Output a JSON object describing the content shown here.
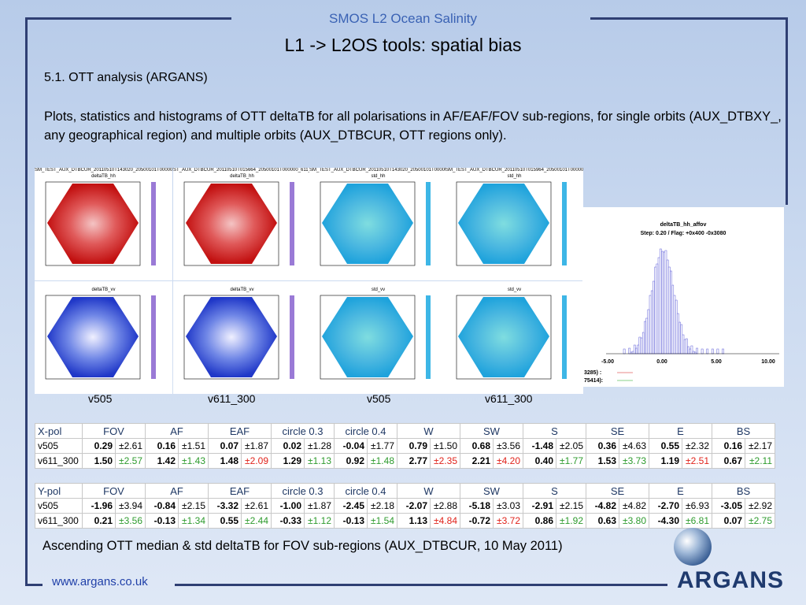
{
  "header": {
    "supertitle": "SMOS L2 Ocean Salinity",
    "title": "L1 -> L2OS tools: spatial bias"
  },
  "section_label": "5.1. OTT analysis (ARGANS)",
  "description": "Plots, statistics and histograms of OTT deltaTB for all polarisations in AF/EAF/FOV sub-regions, for single orbits (AUX_DTBXY_, any geographical region) and multiple orbits (AUX_DTBCUR, OTT regions only).",
  "plots": [
    {
      "title": "SM_TEST_AUX_DTBCUR_20110510T143020_20500101T000000_611_001_8OTT1",
      "sub": "deltaTB_hh"
    },
    {
      "title": "ST_AUX_DTBCUR_20110510T015664_20500101T000000_611_001_8",
      "sub": "deltaTB_hh"
    },
    {
      "title": "SM_TEST_AUX_DTBCUR_20110510T143020_20500101T000000_611_001_8OT",
      "sub": "std_hh"
    },
    {
      "title": "SM_TEST_AUX_DTBCUR_20110510T015964_20500101T000000_611_001_8OTT1",
      "sub": "std_hh"
    },
    {
      "title": "",
      "sub": "deltaTB_vv"
    },
    {
      "title": "",
      "sub": "deltaTB_vv"
    },
    {
      "title": "",
      "sub": "std_vv"
    },
    {
      "title": "",
      "sub": "std_vv"
    }
  ],
  "plot_captions": [
    "v505",
    "v611_300",
    "v505",
    "v611_300"
  ],
  "histogram": {
    "title": "deltaTB_hh_affov",
    "subtitle": "Step: 0.20 / Flag: +0x400 -0x3080",
    "xticks": [
      "-5.00",
      "0.00",
      "5.00",
      "10.00"
    ],
    "legend": [
      "3285) :",
      "75414):"
    ]
  },
  "colors": {
    "text_green": "#2e9b2e",
    "text_red": "#e0231b",
    "header_navy": "#1f3864"
  },
  "tables": [
    {
      "pol": "X-pol",
      "columns": [
        "FOV",
        "AF",
        "EAF",
        "circle 0.3",
        "circle 0.4",
        "W",
        "SW",
        "S",
        "SE",
        "E",
        "BS"
      ],
      "rows": [
        {
          "label": "v505",
          "cells": [
            [
              "0.29",
              "±2.61",
              ""
            ],
            [
              "0.16",
              "±1.51",
              ""
            ],
            [
              "0.07",
              "±1.87",
              ""
            ],
            [
              "0.02",
              "±1.28",
              ""
            ],
            [
              "-0.04",
              "±1.77",
              ""
            ],
            [
              "0.79",
              "±1.50",
              ""
            ],
            [
              "0.68",
              "±3.56",
              ""
            ],
            [
              "-1.48",
              "±2.05",
              ""
            ],
            [
              "0.36",
              "±4.63",
              ""
            ],
            [
              "0.55",
              "±2.32",
              ""
            ],
            [
              "0.16",
              "±2.17",
              ""
            ]
          ]
        },
        {
          "label": "v611_300",
          "cells": [
            [
              "1.50",
              "±2.57",
              "green"
            ],
            [
              "1.42",
              "±1.43",
              "green"
            ],
            [
              "1.48",
              "±2.09",
              "red"
            ],
            [
              "1.29",
              "±1.13",
              "green"
            ],
            [
              "0.92",
              "±1.48",
              "green"
            ],
            [
              "2.77",
              "±2.35",
              "red"
            ],
            [
              "2.21",
              "±4.20",
              "red"
            ],
            [
              "0.40",
              "±1.77",
              "green"
            ],
            [
              "1.53",
              "±3.73",
              "green"
            ],
            [
              "1.19",
              "±2.51",
              "red"
            ],
            [
              "0.67",
              "±2.11",
              "green"
            ]
          ]
        }
      ]
    },
    {
      "pol": "Y-pol",
      "columns": [
        "FOV",
        "AF",
        "EAF",
        "circle 0.3",
        "circle 0.4",
        "W",
        "SW",
        "S",
        "SE",
        "E",
        "BS"
      ],
      "rows": [
        {
          "label": "v505",
          "cells": [
            [
              "-1.96",
              "±3.94",
              ""
            ],
            [
              "-0.84",
              "±2.15",
              ""
            ],
            [
              "-3.32",
              "±2.61",
              ""
            ],
            [
              "-1.00",
              "±1.87",
              ""
            ],
            [
              "-2.45",
              "±2.18",
              ""
            ],
            [
              "-2.07",
              "±2.88",
              ""
            ],
            [
              "-5.18",
              "±3.03",
              ""
            ],
            [
              "-2.91",
              "±2.15",
              ""
            ],
            [
              "-4.82",
              "±4.82",
              ""
            ],
            [
              "-2.70",
              "±6.93",
              ""
            ],
            [
              "-3.05",
              "±2.92",
              ""
            ]
          ]
        },
        {
          "label": "v611_300",
          "cells": [
            [
              "0.21",
              "±3.56",
              "green"
            ],
            [
              "-0.13",
              "±1.34",
              "green"
            ],
            [
              "0.55",
              "±2.44",
              "green"
            ],
            [
              "-0.33",
              "±1.12",
              "green"
            ],
            [
              "-0.13",
              "±1.54",
              "green"
            ],
            [
              "1.13",
              "±4.84",
              "red"
            ],
            [
              "-0.72",
              "±3.72",
              "red"
            ],
            [
              "0.86",
              "±1.92",
              "green"
            ],
            [
              "0.63",
              "±3.80",
              "green"
            ],
            [
              "-4.30",
              "±6.81",
              "green"
            ],
            [
              "0.07",
              "±2.75",
              "green"
            ]
          ]
        }
      ]
    }
  ],
  "footer": {
    "caption": "Ascending OTT median & std deltaTB for FOV sub-regions (AUX_DTBCUR, 10 May 2011)",
    "url": "www.argans.co.uk",
    "logo_text": "ARGANS"
  }
}
